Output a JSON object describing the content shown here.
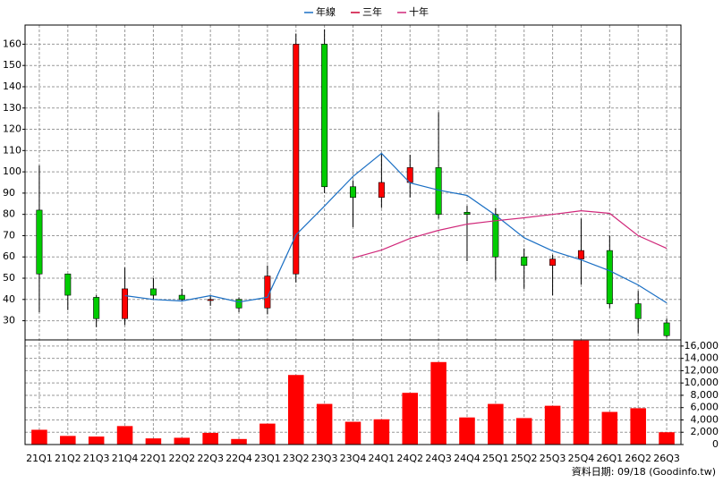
{
  "chart_data": {
    "type": "candlestick",
    "categories": [
      "21Q1",
      "21Q2",
      "21Q3",
      "21Q4",
      "22Q1",
      "22Q2",
      "22Q3",
      "22Q4",
      "23Q1",
      "23Q2",
      "23Q3",
      "23Q4",
      "24Q1",
      "24Q2",
      "24Q3",
      "24Q4",
      "25Q1",
      "25Q2",
      "25Q3",
      "25Q4",
      "26Q1",
      "26Q2",
      "26Q3"
    ],
    "open": [
      82,
      52,
      41,
      31,
      45,
      42,
      39.5,
      40,
      36,
      52,
      160,
      93,
      88,
      95,
      102,
      81,
      80,
      60,
      56,
      59,
      63,
      38,
      29
    ],
    "high": [
      103,
      52,
      42,
      55,
      50,
      45,
      42,
      41,
      56,
      165,
      167,
      96,
      109,
      108,
      128,
      84,
      83,
      64,
      61,
      78,
      70,
      44,
      31
    ],
    "low": [
      34,
      35,
      27,
      28,
      40,
      39,
      37,
      34,
      33,
      48,
      90,
      74,
      83,
      88,
      78,
      58,
      49,
      45,
      42,
      47,
      36,
      24,
      22
    ],
    "close": [
      52,
      42,
      31,
      45,
      42,
      40,
      40,
      36,
      51,
      160,
      93,
      88,
      95,
      102,
      80,
      80,
      60,
      56,
      59,
      63,
      38,
      31,
      23
    ],
    "up_color": "#ff0000",
    "down_color": "#00cc00",
    "series": [
      {
        "name": "年線",
        "color": "#1a6fc4",
        "values": [
          null,
          null,
          null,
          41.8,
          40,
          39.3,
          41.8,
          38.8,
          41,
          70.4,
          83.9,
          97.8,
          108.7,
          94.8,
          91.4,
          88.9,
          79.6,
          69,
          62.8,
          58.6,
          53.5,
          46.8,
          38.4
        ]
      },
      {
        "name": "三年",
        "color": "#cc0033",
        "values": [
          null,
          null,
          null,
          null,
          null,
          null,
          null,
          null,
          null,
          null,
          null,
          null,
          null,
          null,
          null,
          null,
          null,
          null,
          null,
          null,
          null,
          null,
          null
        ]
      },
      {
        "name": "十年",
        "color": "#d0287a",
        "values": [
          null,
          null,
          null,
          null,
          null,
          null,
          null,
          null,
          null,
          null,
          null,
          59.5,
          63.2,
          68.7,
          72.5,
          75.4,
          77,
          78.4,
          80,
          81.7,
          80.5,
          70,
          64
        ]
      }
    ],
    "ylim": [
      21,
      169
    ],
    "yticks": [
      30,
      40,
      50,
      60,
      70,
      80,
      90,
      100,
      110,
      120,
      130,
      140,
      150,
      160
    ],
    "volume": {
      "color": "#ff0000",
      "axis": "y2",
      "values": [
        2400,
        1400,
        1300,
        3000,
        1000,
        1100,
        1900,
        900,
        3400,
        11300,
        6600,
        3700,
        4100,
        8400,
        13400,
        4400,
        6600,
        4300,
        6300,
        16900,
        5300,
        5900,
        2000
      ]
    },
    "y2lim": [
      0,
      17000
    ],
    "y2ticks": [
      0,
      {
        "value": 2000,
        "label": "2,000"
      },
      {
        "value": 4000,
        "label": "4,000"
      },
      {
        "value": 6000,
        "label": "6,000"
      },
      {
        "value": 8000,
        "label": "8,000"
      },
      {
        "value": 10000,
        "label": "10,000"
      },
      {
        "value": 12000,
        "label": "12,000"
      },
      {
        "value": 14000,
        "label": "14,000"
      },
      {
        "value": 16000,
        "label": "16,000"
      }
    ],
    "grid": true,
    "source": "資料日期: 09/18 (Goodinfo.tw)"
  }
}
